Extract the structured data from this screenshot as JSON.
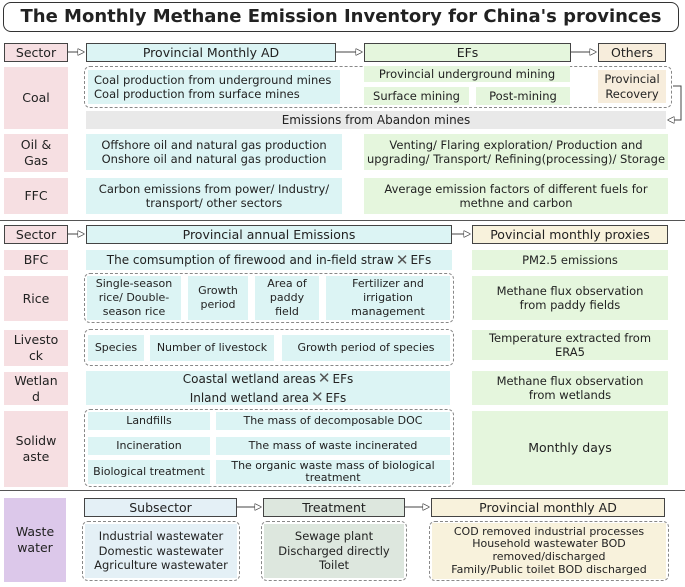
{
  "title": "The Monthly Methane Emission Inventory for China's provinces",
  "section1": {
    "headers": {
      "sector": "Sector",
      "ad": "Provincial Monthly AD",
      "efs": "EFs",
      "others": "Others"
    },
    "coal": {
      "label": "Coal",
      "ad": [
        "Coal production from underground mines",
        "Coal production from surface mines"
      ],
      "ef_underground": "Provincial underground mining",
      "ef_surface": "Surface mining",
      "ef_post": "Post-mining",
      "others": [
        "Provincial",
        "Recovery"
      ],
      "abandon": "Emissions from Abandon mines"
    },
    "oilgas": {
      "label": [
        "Oil &",
        "Gas"
      ],
      "ad": [
        "Offshore oil and natural gas production",
        "Onshore oil and natural gas production"
      ],
      "ef": [
        "Venting/ Flaring exploration/ Production and",
        "upgrading/ Transport/ Refining(processing)/ Storage"
      ]
    },
    "ffc": {
      "label": "FFC",
      "ad": [
        "Carbon emissions from power/ Industry/",
        "transport/ other sectors"
      ],
      "ef": [
        "Average emission factors of different fuels for",
        "methne and carbon"
      ]
    }
  },
  "section2": {
    "headers": {
      "sector": "Sector",
      "emissions": "Provincial annual Emissions",
      "proxies": "Povincial monthly proxies"
    },
    "bfc": {
      "label": "BFC",
      "text": "The comsumption of firewood and in-field straw",
      "ef": "EFs",
      "proxy": "PM2.5 emissions"
    },
    "rice": {
      "label": "Rice",
      "items": [
        [
          "Single-season",
          "rice/ Double-",
          "season rice"
        ],
        [
          "Growth",
          "period"
        ],
        [
          "Area of",
          "paddy",
          "field"
        ],
        [
          "Fertilizer and",
          "irrigation",
          "management"
        ]
      ],
      "proxy": [
        "Methane flux observation",
        "from paddy fields"
      ]
    },
    "livestock": {
      "label": [
        "Livesto",
        "ck"
      ],
      "items": [
        "Species",
        "Number of livestock",
        "Growth period of species"
      ],
      "proxy": [
        "Temperature extracted from",
        "ERA5"
      ]
    },
    "wetland": {
      "label": [
        "Wetlan",
        "d"
      ],
      "coastal": "Coastal wetland areas",
      "inland": "Inland wetland area",
      "ef": "EFs",
      "proxy": [
        "Methane flux observation",
        "from wetlands"
      ]
    },
    "solidwaste": {
      "label": [
        "Solidw",
        "aste"
      ],
      "rows": [
        {
          "name": "Landfills",
          "value": [
            "The mass of decomposable DOC"
          ]
        },
        {
          "name": "Incineration",
          "value": [
            "The mass of waste incinerated"
          ]
        },
        {
          "name": "Biological treatment",
          "value": [
            "The organic waste mass of biological",
            "treatment"
          ]
        }
      ],
      "proxy": "Monthly days"
    }
  },
  "section3": {
    "label": [
      "Waste",
      "water"
    ],
    "headers": {
      "subsector": "Subsector",
      "treatment": "Treatment",
      "ad": "Provincial monthly AD"
    },
    "subsectors": [
      "Industrial wastewater",
      "Domestic wastewater",
      "Agriculture wastewater"
    ],
    "treatments": [
      "Sewage plant",
      "Discharged directly",
      "Toilet"
    ],
    "ad": [
      "COD removed industrial processes",
      "Household wastewater BOD",
      "removed/discharged",
      "Family/Public toilet BOD discharged"
    ]
  }
}
